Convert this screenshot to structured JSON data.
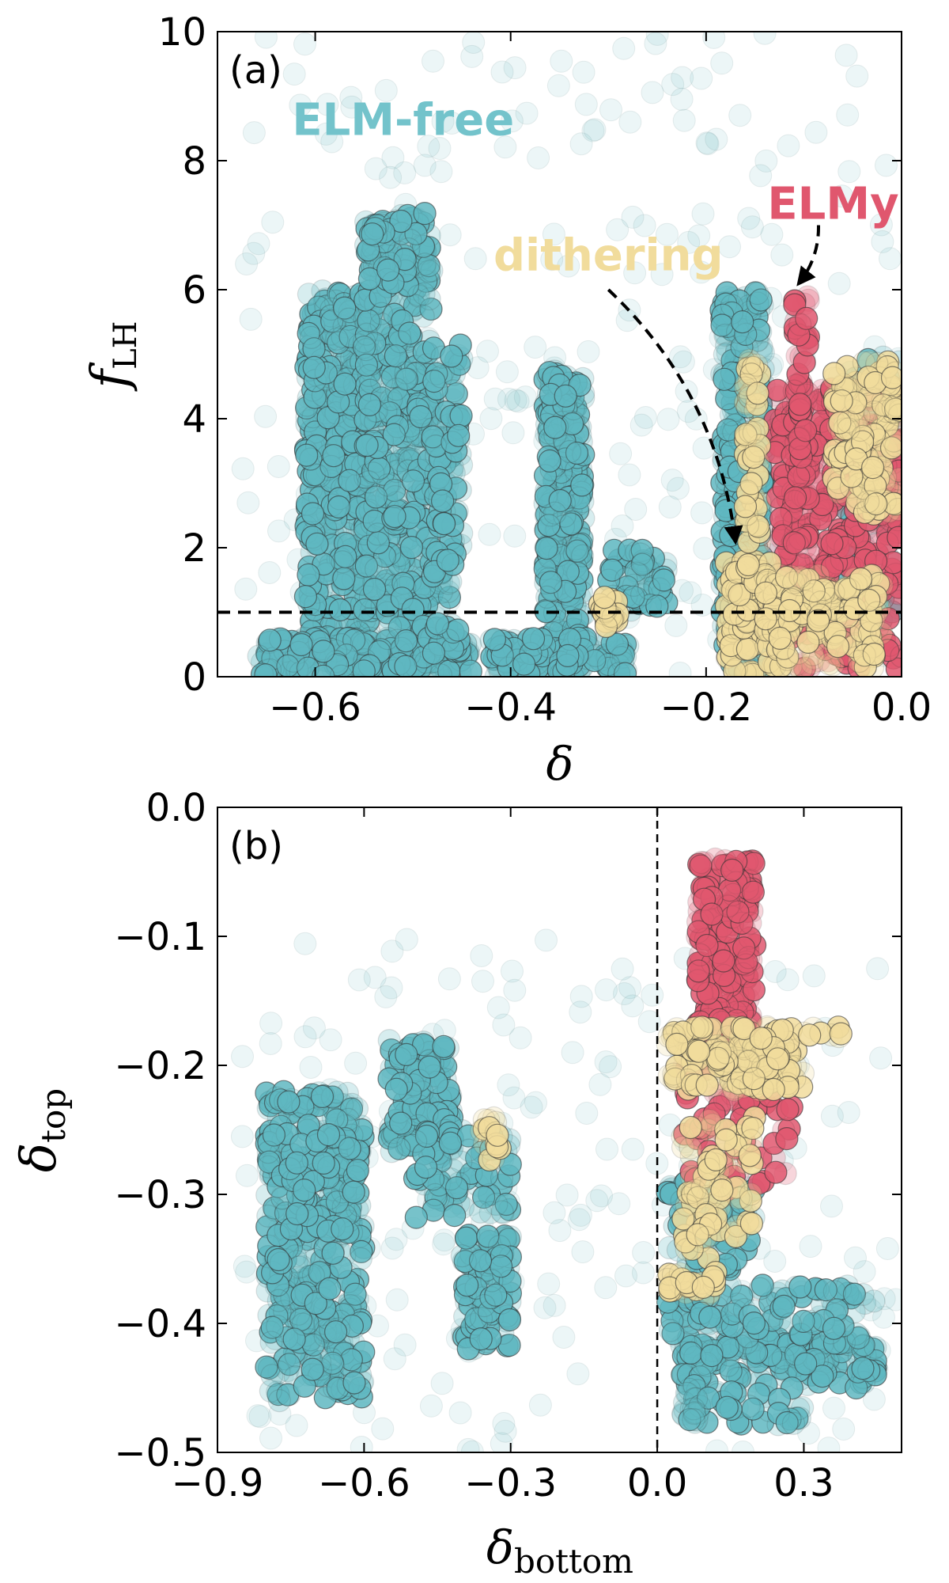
{
  "chart_data": [
    {
      "type": "scatter",
      "panel_label": "(a)",
      "xlabel_main": "δ",
      "xlabel_sub": "",
      "ylabel_main": "f",
      "ylabel_sub": "LH",
      "xlim": [
        -0.7,
        0.0
      ],
      "ylim": [
        0,
        10
      ],
      "xticks": [
        -0.6,
        -0.4,
        -0.2,
        0.0
      ],
      "xtick_labels": [
        "−0.6",
        "−0.4",
        "−0.2",
        "0.0"
      ],
      "yticks": [
        0,
        2,
        4,
        6,
        8,
        10
      ],
      "ytick_labels": [
        "0",
        "2",
        "4",
        "6",
        "8",
        "10"
      ],
      "hline": 1.0,
      "annotations": [
        {
          "text": "ELM-free",
          "x": -0.51,
          "y": 8.4,
          "color": "#73c3cb"
        },
        {
          "text": "ELMy",
          "x": -0.07,
          "y": 7.1,
          "color": "#e0576e"
        },
        {
          "text": "dithering",
          "x": -0.3,
          "y": 6.3,
          "color": "#f1dc9c"
        }
      ],
      "arrows": [
        {
          "from": [
            -0.3,
            6.0
          ],
          "to": [
            -0.17,
            2.1
          ]
        },
        {
          "from": [
            -0.085,
            7.0
          ],
          "to": [
            -0.105,
            6.1
          ]
        }
      ],
      "series": [
        {
          "name": "ELM-free",
          "color": "#5fb7c1",
          "clusters": [
            {
              "x": [
                -0.61,
                -0.54
              ],
              "y": [
                0.2,
                6.0
              ],
              "n": 500
            },
            {
              "x": [
                -0.55,
                -0.48
              ],
              "y": [
                0.2,
                7.2
              ],
              "n": 450
            },
            {
              "x": [
                -0.66,
                -0.44
              ],
              "y": [
                0.0,
                0.6
              ],
              "n": 200
            },
            {
              "x": [
                -0.48,
                -0.45
              ],
              "y": [
                0.2,
                5.2
              ],
              "n": 120
            },
            {
              "x": [
                -0.365,
                -0.325
              ],
              "y": [
                0.1,
                4.8
              ],
              "n": 300
            },
            {
              "x": [
                -0.42,
                -0.28
              ],
              "y": [
                0.0,
                0.6
              ],
              "n": 120
            },
            {
              "x": [
                -0.3,
                -0.24
              ],
              "y": [
                1.0,
                2.0
              ],
              "n": 50
            },
            {
              "x": [
                -0.185,
                -0.14
              ],
              "y": [
                0.0,
                6.0
              ],
              "n": 300
            },
            {
              "x": [
                -0.06,
                0.0
              ],
              "y": [
                0.5,
                5.0
              ],
              "n": 80
            }
          ],
          "sparse": {
            "x": [
              -0.68,
              0.0
            ],
            "y": [
              0.0,
              10.0
            ],
            "n": 240
          }
        },
        {
          "name": "ELMy",
          "color": "#e0576e",
          "clusters": [
            {
              "x": [
                -0.13,
                0.0
              ],
              "y": [
                0.1,
                4.5
              ],
              "n": 450
            },
            {
              "x": [
                -0.11,
                -0.095
              ],
              "y": [
                2.0,
                5.9
              ],
              "n": 60
            }
          ]
        },
        {
          "name": "dithering",
          "color": "#f1dc9c",
          "clusters": [
            {
              "x": [
                -0.18,
                -0.13
              ],
              "y": [
                0.0,
                1.8
              ],
              "n": 120
            },
            {
              "x": [
                -0.16,
                -0.145
              ],
              "y": [
                1.5,
                5.0
              ],
              "n": 60
            },
            {
              "x": [
                -0.07,
                0.0
              ],
              "y": [
                2.5,
                4.9
              ],
              "n": 160
            },
            {
              "x": [
                -0.14,
                -0.02
              ],
              "y": [
                0.1,
                1.6
              ],
              "n": 160
            },
            {
              "x": [
                -0.31,
                -0.29
              ],
              "y": [
                0.7,
                1.3
              ],
              "n": 20
            }
          ]
        }
      ]
    },
    {
      "type": "scatter",
      "panel_label": "(b)",
      "xlabel_main": "δ",
      "xlabel_sub": "bottom",
      "ylabel_main": "δ",
      "ylabel_sub": "top",
      "xlim": [
        -0.9,
        0.5
      ],
      "ylim": [
        -0.5,
        0.0
      ],
      "xticks": [
        -0.9,
        -0.6,
        -0.3,
        0.0,
        0.3
      ],
      "xtick_labels": [
        "−0.9",
        "−0.6",
        "−0.3",
        "0.0",
        "0.3"
      ],
      "yticks": [
        -0.5,
        -0.4,
        -0.3,
        -0.2,
        -0.1,
        0.0
      ],
      "ytick_labels": [
        "−0.5",
        "−0.4",
        "−0.3",
        "−0.2",
        "−0.1",
        "0.0"
      ],
      "vline": 0.0,
      "series": [
        {
          "name": "ELM-free",
          "color": "#5fb7c1",
          "clusters": [
            {
              "x": [
                -0.8,
                -0.6
              ],
              "y": [
                -0.46,
                -0.22
              ],
              "n": 450
            },
            {
              "x": [
                -0.55,
                -0.42
              ],
              "y": [
                -0.27,
                -0.18
              ],
              "n": 140
            },
            {
              "x": [
                -0.4,
                -0.3
              ],
              "y": [
                -0.42,
                -0.33
              ],
              "n": 100
            },
            {
              "x": [
                -0.5,
                -0.3
              ],
              "y": [
                -0.32,
                -0.25
              ],
              "n": 80
            },
            {
              "x": [
                0.02,
                0.2
              ],
              "y": [
                -0.36,
                -0.29
              ],
              "n": 80
            },
            {
              "x": [
                0.05,
                0.45
              ],
              "y": [
                -0.45,
                -0.41
              ],
              "n": 160
            },
            {
              "x": [
                0.02,
                0.45
              ],
              "y": [
                -0.41,
                -0.37
              ],
              "n": 100
            },
            {
              "x": [
                0.05,
                0.3
              ],
              "y": [
                -0.48,
                -0.45
              ],
              "n": 50
            }
          ],
          "sparse": {
            "x": [
              -0.85,
              0.5
            ],
            "y": [
              -0.5,
              -0.1
            ],
            "n": 200
          }
        },
        {
          "name": "ELMy",
          "color": "#e0576e",
          "clusters": [
            {
              "x": [
                0.08,
                0.2
              ],
              "y": [
                -0.2,
                -0.04
              ],
              "n": 200
            },
            {
              "x": [
                0.05,
                0.28
              ],
              "y": [
                -0.3,
                -0.2
              ],
              "n": 80
            }
          ]
        },
        {
          "name": "dithering",
          "color": "#f1dc9c",
          "clusters": [
            {
              "x": [
                0.02,
                0.3
              ],
              "y": [
                -0.22,
                -0.17
              ],
              "n": 160
            },
            {
              "x": [
                0.05,
                0.2
              ],
              "y": [
                -0.35,
                -0.24
              ],
              "n": 80
            },
            {
              "x": [
                0.02,
                0.12
              ],
              "y": [
                -0.38,
                -0.36
              ],
              "n": 30
            },
            {
              "x": [
                -0.36,
                -0.32
              ],
              "y": [
                -0.28,
                -0.24
              ],
              "n": 15
            },
            {
              "x": [
                0.3,
                0.4
              ],
              "y": [
                -0.18,
                -0.17
              ],
              "n": 8
            }
          ]
        }
      ]
    }
  ]
}
